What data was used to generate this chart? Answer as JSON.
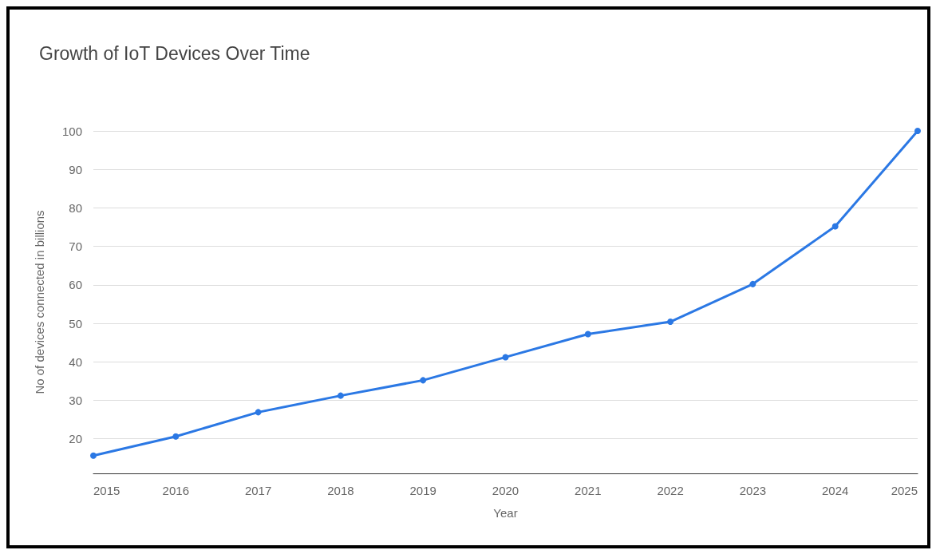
{
  "chart_data": {
    "type": "line",
    "title": "Growth of IoT Devices Over Time",
    "xlabel": "Year",
    "ylabel": "No of devices connected in billions",
    "x": [
      2015,
      2016,
      2017,
      2018,
      2019,
      2020,
      2021,
      2022,
      2023,
      2024,
      2025
    ],
    "series": [
      {
        "color": "#2b78e4",
        "values": [
          15.6,
          20.6,
          26.9,
          31.2,
          35.2,
          41.2,
          47.2,
          50.4,
          60.2,
          75.2,
          100
        ]
      }
    ],
    "xlim": [
      2015,
      2025
    ],
    "xticks": [
      2015,
      2016,
      2017,
      2018,
      2019,
      2020,
      2021,
      2022,
      2023,
      2024,
      2025
    ],
    "ylim": [
      11,
      100
    ],
    "yticks": [
      20,
      30,
      40,
      50,
      60,
      70,
      80,
      90,
      100
    ],
    "grid": "y",
    "marker": "circle",
    "line_style": "solid"
  }
}
